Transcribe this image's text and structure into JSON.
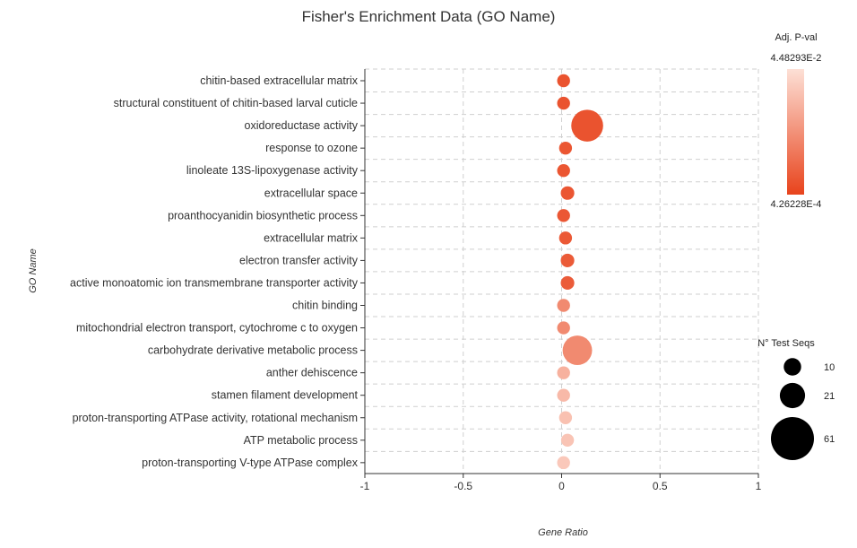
{
  "chart_data": {
    "type": "scatter",
    "title": "Fisher's Enrichment Data (GO Name)",
    "xlabel": "Gene Ratio",
    "ylabel": "GO Name",
    "xlim": [
      -1,
      1
    ],
    "xticks": [
      -1,
      -0.5,
      0,
      0.5,
      1
    ],
    "xtick_labels": [
      "-1",
      "-0.5",
      "0",
      "0.5",
      "1"
    ],
    "grid": true,
    "categories": [
      "chitin-based extracellular matrix",
      "structural constituent of chitin-based larval cuticle",
      "oxidoreductase activity",
      "response to ozone",
      "linoleate 13S-lipoxygenase activity",
      "extracellular space",
      "proanthocyanidin biosynthetic process",
      "extracellular matrix",
      "electron transfer activity",
      "active monoatomic ion transmembrane transporter activity",
      "chitin binding",
      "mitochondrial electron transport, cytochrome c to oxygen",
      "carbohydrate derivative metabolic process",
      "anther dehiscence",
      "stamen filament development",
      "proton-transporting ATPase activity, rotational mechanism",
      "ATP metabolic process",
      "proton-transporting V-type ATPase complex"
    ],
    "points": [
      {
        "term": "chitin-based extracellular matrix",
        "gene_ratio": 0.01,
        "n_test_seqs": 10,
        "color_level": 0.1
      },
      {
        "term": "structural constituent of chitin-based larval cuticle",
        "gene_ratio": 0.01,
        "n_test_seqs": 10,
        "color_level": 0.1
      },
      {
        "term": "oxidoreductase activity",
        "gene_ratio": 0.13,
        "n_test_seqs": 61,
        "color_level": 0.1
      },
      {
        "term": "response to ozone",
        "gene_ratio": 0.02,
        "n_test_seqs": 10,
        "color_level": 0.12
      },
      {
        "term": "linoleate 13S-lipoxygenase activity",
        "gene_ratio": 0.01,
        "n_test_seqs": 10,
        "color_level": 0.12
      },
      {
        "term": "extracellular space",
        "gene_ratio": 0.03,
        "n_test_seqs": 11,
        "color_level": 0.12
      },
      {
        "term": "proanthocyanidin biosynthetic process",
        "gene_ratio": 0.01,
        "n_test_seqs": 10,
        "color_level": 0.13
      },
      {
        "term": "extracellular matrix",
        "gene_ratio": 0.02,
        "n_test_seqs": 10,
        "color_level": 0.14
      },
      {
        "term": "electron transfer activity",
        "gene_ratio": 0.03,
        "n_test_seqs": 11,
        "color_level": 0.15
      },
      {
        "term": "active monoatomic ion transmembrane transporter activity",
        "gene_ratio": 0.03,
        "n_test_seqs": 11,
        "color_level": 0.16
      },
      {
        "term": "chitin binding",
        "gene_ratio": 0.01,
        "n_test_seqs": 10,
        "color_level": 0.45
      },
      {
        "term": "mitochondrial electron transport, cytochrome c to oxygen",
        "gene_ratio": 0.01,
        "n_test_seqs": 10,
        "color_level": 0.45
      },
      {
        "term": "carbohydrate derivative metabolic process",
        "gene_ratio": 0.08,
        "n_test_seqs": 52,
        "color_level": 0.45
      },
      {
        "term": "anther dehiscence",
        "gene_ratio": 0.01,
        "n_test_seqs": 10,
        "color_level": 0.7
      },
      {
        "term": "stamen filament development",
        "gene_ratio": 0.01,
        "n_test_seqs": 10,
        "color_level": 0.75
      },
      {
        "term": "proton-transporting ATPase activity, rotational mechanism",
        "gene_ratio": 0.02,
        "n_test_seqs": 10,
        "color_level": 0.8
      },
      {
        "term": "ATP metabolic process",
        "gene_ratio": 0.03,
        "n_test_seqs": 10,
        "color_level": 0.82
      },
      {
        "term": "proton-transporting V-type ATPase complex",
        "gene_ratio": 0.01,
        "n_test_seqs": 10,
        "color_level": 0.85
      }
    ],
    "color_legend": {
      "title": "Adj. P-val",
      "max_label": "4.48293E-2",
      "min_label": "4.26228E-4",
      "high_color": "#fde0d6",
      "low_color": "#e8431c"
    },
    "size_legend": {
      "title": "N° Test Seqs",
      "entries": [
        {
          "value": 10,
          "label": "10"
        },
        {
          "value": 21,
          "label": "21"
        },
        {
          "value": 61,
          "label": "61"
        }
      ]
    }
  }
}
